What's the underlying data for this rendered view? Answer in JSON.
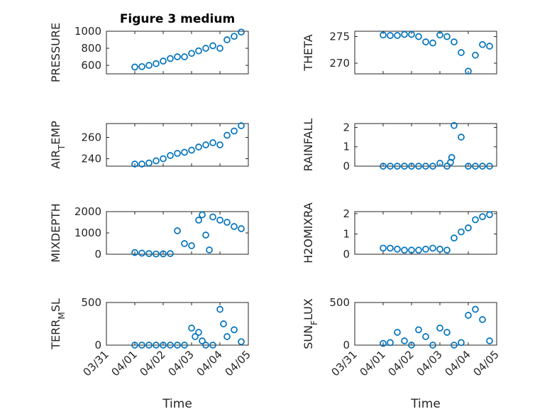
{
  "figure": {
    "title": "Figure 3 medium",
    "xlabel": "Time",
    "marker_color": "#0072BD"
  },
  "chart_data": [
    {
      "type": "scatter",
      "ylabel": "PRESSURE",
      "ylim": [
        500,
        1000
      ],
      "yticks": [
        600,
        800,
        1000
      ],
      "x": [
        "04/01 00:00",
        "04/01 06:00",
        "04/01 12:00",
        "04/01 18:00",
        "04/02 00:00",
        "04/02 06:00",
        "04/02 12:00",
        "04/02 18:00",
        "04/03 00:00",
        "04/03 06:00",
        "04/03 12:00",
        "04/03 18:00",
        "04/04 00:00",
        "04/04 06:00",
        "04/04 12:00",
        "04/04 18:00"
      ],
      "y": [
        580,
        585,
        600,
        620,
        650,
        680,
        700,
        700,
        740,
        770,
        800,
        830,
        800,
        900,
        940,
        990
      ],
      "grid": true
    },
    {
      "type": "scatter",
      "ylabel": "THETA",
      "ylim": [
        268,
        276
      ],
      "yticks": [
        270,
        275
      ],
      "x": [
        "04/01 00:00",
        "04/01 06:00",
        "04/01 12:00",
        "04/01 18:00",
        "04/02 00:00",
        "04/02 06:00",
        "04/02 12:00",
        "04/02 18:00",
        "04/03 00:00",
        "04/03 06:00",
        "04/03 12:00",
        "04/03 18:00",
        "04/04 00:00",
        "04/04 06:00",
        "04/04 12:00",
        "04/04 18:00"
      ],
      "y": [
        275.3,
        275.2,
        275.2,
        275.4,
        275.4,
        275.0,
        274.0,
        273.8,
        275.3,
        275.0,
        274.0,
        272.0,
        268.5,
        271.5,
        273.5,
        273.2
      ],
      "grid": true
    },
    {
      "type": "scatter",
      "ylabel": "AIR_TEMP",
      "ylim": [
        233,
        273
      ],
      "yticks": [
        240,
        260
      ],
      "x": [
        "04/01 00:00",
        "04/01 06:00",
        "04/01 12:00",
        "04/01 18:00",
        "04/02 00:00",
        "04/02 06:00",
        "04/02 12:00",
        "04/02 18:00",
        "04/03 00:00",
        "04/03 06:00",
        "04/03 12:00",
        "04/03 18:00",
        "04/04 00:00",
        "04/04 06:00",
        "04/04 12:00",
        "04/04 18:00"
      ],
      "y": [
        235,
        235,
        236,
        238,
        240,
        243,
        245,
        246,
        248,
        251,
        253,
        255,
        253,
        262,
        266,
        271
      ],
      "grid": true
    },
    {
      "type": "scatter",
      "ylabel": "RAINFALL",
      "ylim": [
        0,
        2.2
      ],
      "yticks": [
        0,
        1,
        2
      ],
      "x": [
        "04/01 00:00",
        "04/01 06:00",
        "04/01 12:00",
        "04/01 18:00",
        "04/02 00:00",
        "04/02 06:00",
        "04/02 12:00",
        "04/02 18:00",
        "04/03 00:00",
        "04/03 06:00",
        "04/03 09:00",
        "04/03 10:00",
        "04/03 12:00",
        "04/03 18:00",
        "04/04 00:00",
        "04/04 06:00",
        "04/04 12:00",
        "04/04 18:00"
      ],
      "y": [
        0,
        0,
        0,
        0,
        0,
        0,
        0,
        0,
        0.15,
        0,
        0.2,
        0.45,
        2.1,
        1.5,
        0,
        0,
        0,
        0
      ],
      "grid": true
    },
    {
      "type": "scatter",
      "ylabel": "MIXDEPTH",
      "ylim": [
        0,
        2000
      ],
      "yticks": [
        0,
        1000,
        2000
      ],
      "x": [
        "04/01 00:00",
        "04/01 06:00",
        "04/01 12:00",
        "04/01 18:00",
        "04/02 00:00",
        "04/02 06:00",
        "04/02 12:00",
        "04/02 18:00",
        "04/03 00:00",
        "04/03 06:00",
        "04/03 09:00",
        "04/03 12:00",
        "04/03 15:00",
        "04/03 18:00",
        "04/04 00:00",
        "04/04 06:00",
        "04/04 12:00",
        "04/04 18:00"
      ],
      "y": [
        80,
        50,
        30,
        10,
        20,
        30,
        1100,
        500,
        400,
        1600,
        1850,
        900,
        200,
        1750,
        1600,
        1500,
        1300,
        1200
      ],
      "grid": true
    },
    {
      "type": "scatter",
      "ylabel": "H2OMIXRA",
      "ylim": [
        0,
        2.1
      ],
      "yticks": [
        0,
        1,
        2
      ],
      "x": [
        "04/01 00:00",
        "04/01 06:00",
        "04/01 12:00",
        "04/01 18:00",
        "04/02 00:00",
        "04/02 06:00",
        "04/02 12:00",
        "04/02 18:00",
        "04/03 00:00",
        "04/03 06:00",
        "04/03 12:00",
        "04/03 18:00",
        "04/04 00:00",
        "04/04 06:00",
        "04/04 12:00",
        "04/04 18:00"
      ],
      "y": [
        0.3,
        0.3,
        0.25,
        0.2,
        0.2,
        0.2,
        0.25,
        0.3,
        0.25,
        0.2,
        0.8,
        1.1,
        1.3,
        1.7,
        1.85,
        1.95
      ],
      "grid": true
    },
    {
      "type": "scatter",
      "ylabel": "TERR_MSL",
      "ylim": [
        0,
        500
      ],
      "yticks": [
        0,
        500
      ],
      "x": [
        "04/01 00:00",
        "04/01 06:00",
        "04/01 12:00",
        "04/01 18:00",
        "04/02 00:00",
        "04/02 06:00",
        "04/02 12:00",
        "04/02 18:00",
        "04/03 00:00",
        "04/03 03:00",
        "04/03 06:00",
        "04/03 09:00",
        "04/03 12:00",
        "04/03 18:00",
        "04/04 00:00",
        "04/04 03:00",
        "04/04 06:00",
        "04/04 12:00",
        "04/04 18:00"
      ],
      "y": [
        0,
        0,
        0,
        0,
        0,
        0,
        0,
        0,
        200,
        100,
        150,
        50,
        0,
        0,
        420,
        250,
        100,
        180,
        40
      ],
      "grid": true
    },
    {
      "type": "scatter",
      "ylabel": "SUN_FLUX",
      "ylim": [
        0,
        500
      ],
      "yticks": [
        0,
        500
      ],
      "x": [
        "04/01 00:00",
        "04/01 06:00",
        "04/01 12:00",
        "04/01 18:00",
        "04/02 00:00",
        "04/02 06:00",
        "04/02 12:00",
        "04/02 18:00",
        "04/03 00:00",
        "04/03 06:00",
        "04/03 12:00",
        "04/03 18:00",
        "04/04 00:00",
        "04/04 06:00",
        "04/04 12:00",
        "04/04 18:00"
      ],
      "y": [
        20,
        30,
        150,
        50,
        0,
        180,
        100,
        0,
        200,
        150,
        0,
        30,
        350,
        420,
        300,
        50
      ],
      "grid": true
    }
  ],
  "xaxis": {
    "ticks": [
      "03/31",
      "04/01",
      "04/02",
      "04/03",
      "04/04",
      "04/05"
    ],
    "range": [
      "03/31 00:00",
      "04/05 00:00"
    ]
  }
}
